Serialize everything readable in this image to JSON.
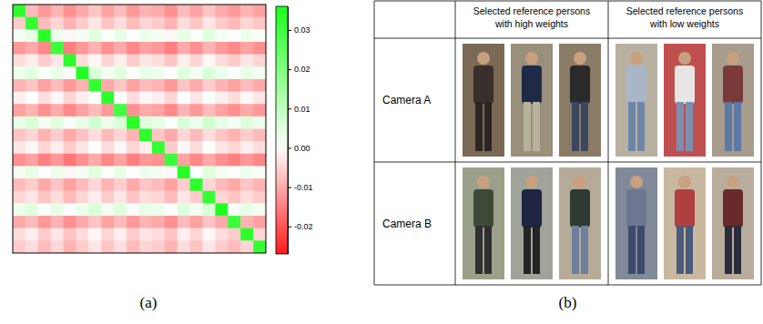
{
  "chart_data": {
    "type": "heatmap",
    "tick_labels": false,
    "cells": [
      [
        0.033,
        -0.008,
        -0.012,
        -0.009,
        -0.013,
        -0.01,
        -0.007,
        -0.011,
        -0.008,
        -0.012,
        -0.009,
        -0.01,
        -0.013,
        -0.008,
        -0.011,
        -0.007,
        -0.01,
        -0.012,
        -0.009,
        -0.011
      ],
      [
        -0.006,
        0.032,
        -0.008,
        -0.005,
        -0.009,
        -0.006,
        -0.003,
        -0.007,
        -0.004,
        -0.008,
        -0.005,
        -0.006,
        -0.009,
        -0.004,
        -0.007,
        -0.003,
        -0.006,
        -0.008,
        -0.005,
        -0.007
      ],
      [
        0.002,
        0.004,
        0.034,
        0.003,
        -0.001,
        0.002,
        0.005,
        0.001,
        0.004,
        0,
        0.003,
        0.002,
        -0.001,
        0.004,
        0.001,
        0.005,
        0.002,
        0,
        0.003,
        0.001
      ],
      [
        -0.012,
        -0.01,
        -0.014,
        0.031,
        -0.015,
        -0.012,
        -0.009,
        -0.013,
        -0.01,
        -0.014,
        -0.011,
        -0.012,
        -0.015,
        -0.01,
        -0.013,
        -0.009,
        -0.012,
        -0.014,
        -0.011,
        -0.013
      ],
      [
        -0.004,
        -0.002,
        -0.006,
        -0.003,
        0.033,
        -0.004,
        -0.001,
        -0.005,
        -0.002,
        -0.006,
        -0.003,
        -0.004,
        -0.007,
        -0.002,
        -0.005,
        -0.001,
        -0.004,
        -0.006,
        -0.003,
        -0.005
      ],
      [
        0.003,
        0.005,
        0.001,
        0.004,
        0,
        0.035,
        0.006,
        0.002,
        0.005,
        0.001,
        0.004,
        0.003,
        0,
        0.005,
        0.002,
        0.006,
        0.003,
        0.001,
        0.004,
        0.002
      ],
      [
        -0.009,
        -0.007,
        -0.011,
        -0.008,
        -0.012,
        -0.009,
        0.032,
        -0.01,
        -0.007,
        -0.011,
        -0.008,
        -0.009,
        -0.012,
        -0.007,
        -0.01,
        -0.006,
        -0.009,
        -0.011,
        -0.008,
        -0.01
      ],
      [
        -0.002,
        0,
        -0.004,
        -0.001,
        -0.005,
        -0.002,
        0.001,
        0.033,
        0,
        -0.004,
        -0.001,
        -0.002,
        -0.005,
        0,
        -0.003,
        0.001,
        -0.002,
        -0.004,
        -0.001,
        -0.003
      ],
      [
        -0.011,
        -0.009,
        -0.013,
        -0.01,
        -0.014,
        -0.011,
        -0.008,
        -0.012,
        0.03,
        -0.013,
        -0.01,
        -0.011,
        -0.014,
        -0.009,
        -0.012,
        -0.008,
        -0.011,
        -0.013,
        -0.01,
        -0.012
      ],
      [
        0.004,
        0.006,
        0.002,
        0.005,
        0.001,
        0.004,
        0.007,
        0.003,
        0.006,
        0.034,
        0.005,
        0.004,
        0.001,
        0.006,
        0.003,
        0.007,
        0.004,
        0.002,
        0.005,
        0.003
      ],
      [
        -0.007,
        -0.005,
        -0.009,
        -0.006,
        -0.01,
        -0.007,
        -0.004,
        -0.008,
        -0.005,
        -0.009,
        0.033,
        -0.007,
        -0.01,
        -0.005,
        -0.008,
        -0.004,
        -0.007,
        -0.009,
        -0.006,
        -0.008
      ],
      [
        -0.003,
        -0.001,
        -0.005,
        -0.002,
        -0.006,
        -0.003,
        0,
        -0.004,
        -0.001,
        -0.005,
        -0.002,
        0.032,
        -0.006,
        -0.001,
        -0.004,
        0,
        -0.003,
        -0.005,
        -0.002,
        -0.004
      ],
      [
        -0.013,
        -0.011,
        -0.015,
        -0.012,
        -0.016,
        -0.013,
        -0.01,
        -0.014,
        -0.011,
        -0.015,
        -0.012,
        -0.013,
        0.031,
        -0.011,
        -0.014,
        -0.01,
        -0.013,
        -0.015,
        -0.012,
        -0.014
      ],
      [
        0.002,
        0.004,
        0,
        0.003,
        -0.001,
        0.002,
        0.005,
        0.001,
        0.004,
        0,
        0.003,
        0.002,
        -0.001,
        0.034,
        0.001,
        0.005,
        0.002,
        0,
        0.003,
        0.001
      ],
      [
        -0.008,
        -0.006,
        -0.01,
        -0.007,
        -0.011,
        -0.008,
        -0.005,
        -0.009,
        -0.006,
        -0.01,
        -0.007,
        -0.008,
        -0.011,
        -0.006,
        0.033,
        -0.005,
        -0.008,
        -0.01,
        -0.007,
        -0.009
      ],
      [
        -0.005,
        -0.003,
        -0.007,
        -0.004,
        -0.008,
        -0.005,
        -0.002,
        -0.006,
        -0.003,
        -0.007,
        -0.004,
        -0.005,
        -0.008,
        -0.003,
        -0.006,
        0.032,
        -0.005,
        -0.007,
        -0.004,
        -0.006
      ],
      [
        0.003,
        0.005,
        0.001,
        0.004,
        0,
        0.003,
        0.006,
        0.002,
        0.005,
        0.001,
        0.004,
        0.003,
        0,
        0.005,
        0.002,
        0.006,
        0.035,
        0.001,
        0.004,
        0.002
      ],
      [
        -0.01,
        -0.008,
        -0.012,
        -0.009,
        -0.013,
        -0.01,
        -0.007,
        -0.011,
        -0.008,
        -0.012,
        -0.009,
        -0.01,
        -0.013,
        -0.008,
        -0.011,
        -0.007,
        -0.01,
        0.031,
        -0.009,
        -0.011
      ],
      [
        -0.004,
        -0.002,
        -0.006,
        -0.003,
        -0.007,
        -0.004,
        -0.001,
        -0.005,
        -0.002,
        -0.006,
        -0.003,
        -0.004,
        -0.007,
        -0.002,
        -0.005,
        -0.001,
        -0.004,
        -0.006,
        0.033,
        -0.005
      ],
      [
        -0.006,
        -0.004,
        -0.008,
        -0.005,
        -0.009,
        -0.006,
        -0.003,
        -0.007,
        -0.004,
        -0.008,
        -0.005,
        -0.006,
        -0.009,
        -0.004,
        -0.007,
        -0.003,
        -0.006,
        -0.008,
        -0.005,
        0.032
      ]
    ],
    "colorbar": {
      "range": [
        -0.027,
        0.036
      ],
      "ticks": [
        -0.02,
        -0.01,
        {
          "value": 0,
          "label": "0.00"
        },
        0.01,
        0.02,
        0.03
      ]
    }
  },
  "table": {
    "columns": [
      [
        "Selected reference persons",
        "with high weights"
      ],
      [
        "Selected reference persons",
        "with low weights"
      ]
    ],
    "rows": [
      "Camera A",
      "Camera B"
    ]
  },
  "captions": [
    "(a)",
    "(b)"
  ]
}
